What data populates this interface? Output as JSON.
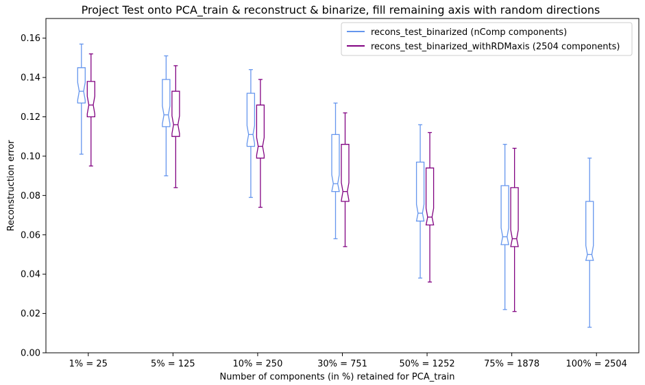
{
  "chart_data": {
    "type": "boxplot",
    "title": "Project Test onto PCA_train & reconstruct & binarize, fill remaining axis with random directions",
    "xlabel": "Number of components (in %) retained for PCA_train",
    "ylabel": "Reconstruction error",
    "ylim": [
      0.0,
      0.17
    ],
    "yticks": [
      "0.00",
      "0.02",
      "0.04",
      "0.06",
      "0.08",
      "0.10",
      "0.12",
      "0.14",
      "0.16"
    ],
    "categories": [
      "1% = 25",
      "5% = 125",
      "10% = 250",
      "30% = 751",
      "50% = 1252",
      "75% = 1878",
      "100% = 2504"
    ],
    "grid": false,
    "legend_position": "top-right",
    "notched": true,
    "series": [
      {
        "name": "recons_test_binarized (nComp components)",
        "color": "#6495ed",
        "boxes": [
          {
            "whislo": 0.101,
            "q1": 0.127,
            "med": 0.133,
            "q3": 0.145,
            "whishi": 0.157
          },
          {
            "whislo": 0.09,
            "q1": 0.115,
            "med": 0.121,
            "q3": 0.139,
            "whishi": 0.151
          },
          {
            "whislo": 0.079,
            "q1": 0.105,
            "med": 0.111,
            "q3": 0.132,
            "whishi": 0.144
          },
          {
            "whislo": 0.058,
            "q1": 0.082,
            "med": 0.086,
            "q3": 0.111,
            "whishi": 0.127
          },
          {
            "whislo": 0.038,
            "q1": 0.067,
            "med": 0.071,
            "q3": 0.097,
            "whishi": 0.116
          },
          {
            "whislo": 0.022,
            "q1": 0.055,
            "med": 0.059,
            "q3": 0.085,
            "whishi": 0.106
          },
          {
            "whislo": 0.013,
            "q1": 0.047,
            "med": 0.05,
            "q3": 0.077,
            "whishi": 0.099
          }
        ]
      },
      {
        "name": "recons_test_binarized_withRDMaxis (2504 components)",
        "color": "#800080",
        "boxes": [
          {
            "whislo": 0.095,
            "q1": 0.12,
            "med": 0.126,
            "q3": 0.138,
            "whishi": 0.152
          },
          {
            "whislo": 0.084,
            "q1": 0.11,
            "med": 0.116,
            "q3": 0.133,
            "whishi": 0.146
          },
          {
            "whislo": 0.074,
            "q1": 0.099,
            "med": 0.105,
            "q3": 0.126,
            "whishi": 0.139
          },
          {
            "whislo": 0.054,
            "q1": 0.077,
            "med": 0.082,
            "q3": 0.106,
            "whishi": 0.122
          },
          {
            "whislo": 0.036,
            "q1": 0.065,
            "med": 0.069,
            "q3": 0.094,
            "whishi": 0.112
          },
          {
            "whislo": 0.021,
            "q1": 0.054,
            "med": 0.058,
            "q3": 0.084,
            "whishi": 0.104
          }
        ]
      }
    ]
  }
}
